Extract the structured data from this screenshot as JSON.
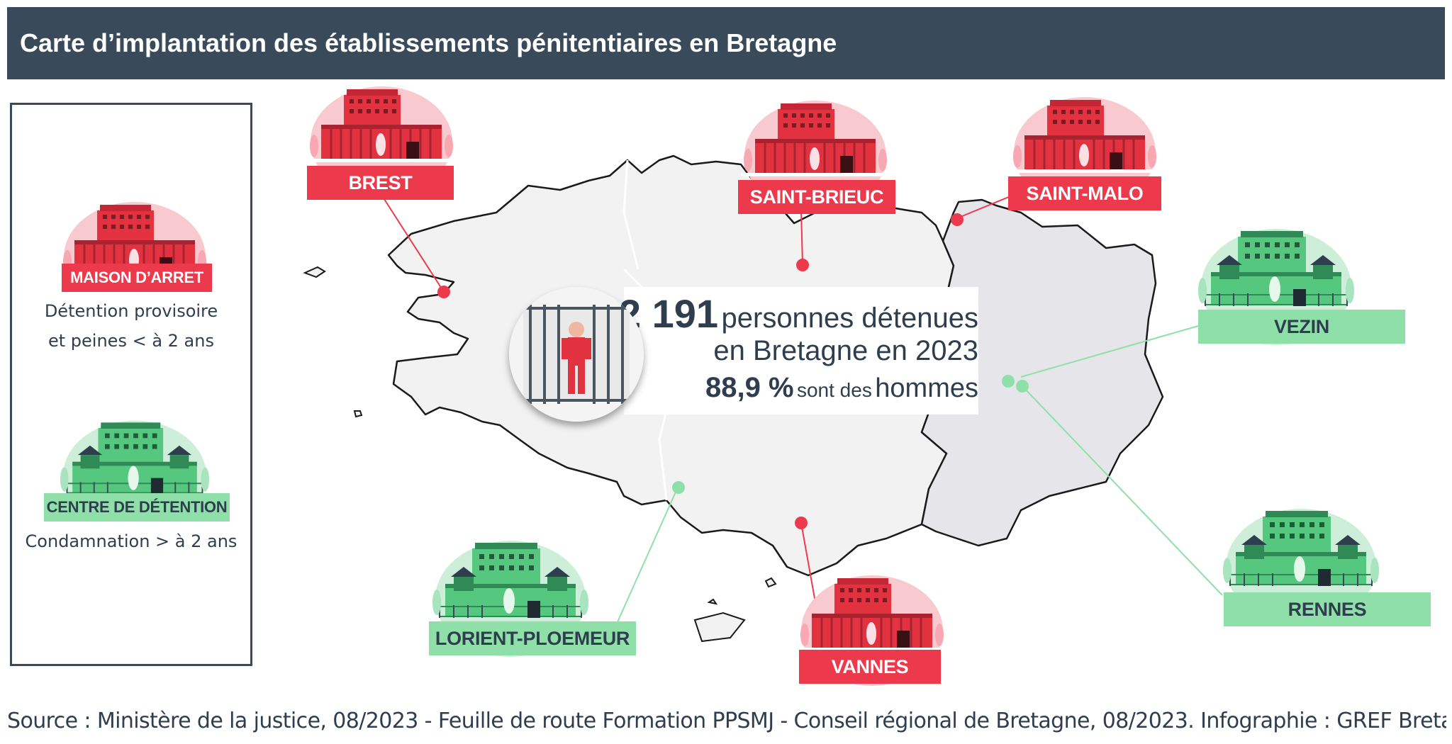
{
  "header": {
    "title": "Carte d’implantation des établissements pénitentiaires en Bretagne"
  },
  "legend": {
    "items": [
      {
        "label": "MAISON D’ARRET",
        "description_line1": "Détention provisoire",
        "description_line2": "et peines < à 2 ans",
        "color": "#ec3a4c"
      },
      {
        "label": "CENTRE DE DÉTENTION",
        "description_line1": "Condamnation > à 2 ans",
        "description_line2": "",
        "color": "#8fe0a8"
      }
    ]
  },
  "sites": [
    {
      "name": "BREST",
      "type": "maison-arret"
    },
    {
      "name": "SAINT-BRIEUC",
      "type": "maison-arret"
    },
    {
      "name": "SAINT-MALO",
      "type": "maison-arret"
    },
    {
      "name": "VEZIN",
      "type": "centre-detention"
    },
    {
      "name": "RENNES",
      "type": "centre-detention"
    },
    {
      "name": "LORIENT-PLOEMEUR",
      "type": "centre-detention"
    },
    {
      "name": "VANNES",
      "type": "maison-arret"
    }
  ],
  "stats": {
    "count": "2 191",
    "count_text": "personnes détenues",
    "region_text": "en Bretagne en 2023",
    "men_pct": "88,9 %",
    "men_text1": "sont des",
    "men_text2": "hommes"
  },
  "source": "Source : Ministère de la justice, 08/2023 - Feuille de route Formation PPSMJ - Conseil régional de Bretagne, 08/2023. Infographie : GREF Bretagne",
  "colors": {
    "header": "#394b5b",
    "red": "#ec3a4c",
    "green": "#8fe0a8",
    "map_west": "#f2f2f2",
    "map_east": "#e6e6ea"
  }
}
